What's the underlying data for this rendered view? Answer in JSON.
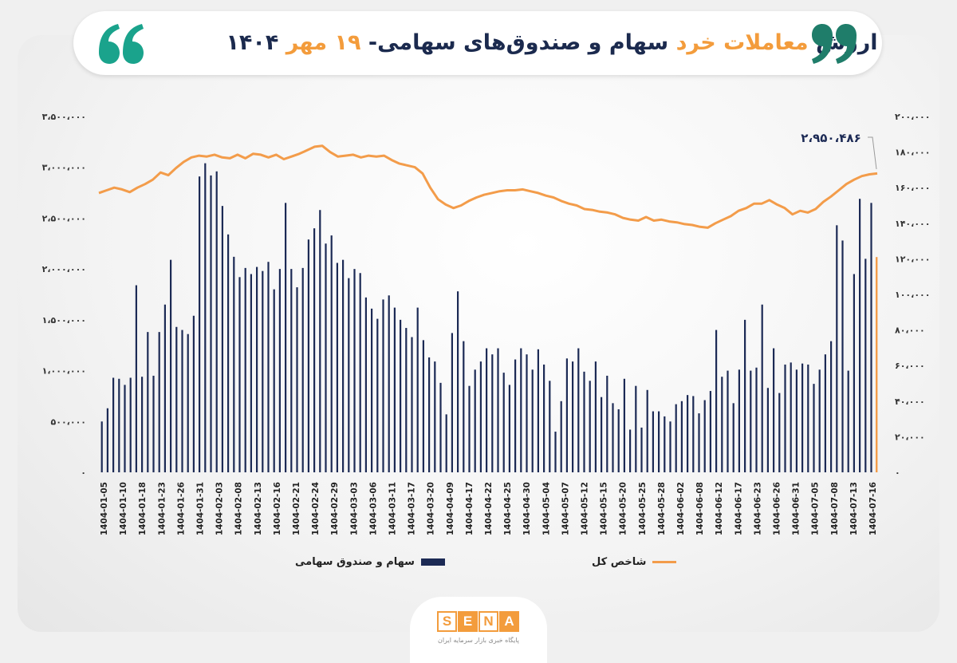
{
  "header": {
    "title_part1": "ارزش",
    "title_part2": "معاملات خرد",
    "title_part3": "سهام و صندوق‌های سهامی-",
    "title_part4": "۱۹ مهر",
    "title_part5": "۱۴۰۴"
  },
  "colors": {
    "navy": "#1c2a55",
    "orange": "#f39c4a",
    "quote_left": "#1aa38c",
    "quote_right": "#1f7d6a"
  },
  "icons": [
    "quote-open-icon",
    "quote-close-icon"
  ],
  "legend": {
    "bars_label": "سهام و صندوق سهامی",
    "line_label": "شاخص کل"
  },
  "logo": {
    "letters": [
      "S",
      "E",
      "N",
      "A"
    ],
    "subtitle": "پایگاه خبری بازار سرمایه ایران"
  },
  "chart_data": {
    "type": "bar+line",
    "categories": [
      "1404-01-05",
      "1404-01-10",
      "1404-01-18",
      "1404-01-23",
      "1404-01-26",
      "1404-01-31",
      "1404-02-03",
      "1404-02-08",
      "1404-02-13",
      "1404-02-16",
      "1404-02-21",
      "1404-02-24",
      "1404-02-29",
      "1404-03-03",
      "1404-03-06",
      "1404-03-11",
      "1404-03-17",
      "1404-03-20",
      "1404-04-09",
      "1404-04-17",
      "1404-04-22",
      "1404-04-25",
      "1404-04-30",
      "1404-05-04",
      "1404-05-07",
      "1404-05-12",
      "1404-05-15",
      "1404-05-20",
      "1404-05-25",
      "1404-05-28",
      "1404-06-02",
      "1404-06-08",
      "1404-06-12",
      "1404-06-17",
      "1404-06-23",
      "1404-06-26",
      "1404-06-31",
      "1404-07-05",
      "1404-07-08",
      "1404-07-13",
      "1404-07-16"
    ],
    "left_axis": {
      "ticks": [
        "۰",
        "۵۰۰،۰۰۰",
        "۱،۰۰۰،۰۰۰",
        "۱،۵۰۰،۰۰۰",
        "۲،۰۰۰،۰۰۰",
        "۲،۵۰۰،۰۰۰",
        "۳،۰۰۰،۰۰۰",
        "۳،۵۰۰،۰۰۰"
      ],
      "ylim": [
        0,
        3500000
      ]
    },
    "right_axis": {
      "ticks": [
        "۰",
        "۲۰،۰۰۰",
        "۴۰،۰۰۰",
        "۶۰،۰۰۰",
        "۸۰،۰۰۰",
        "۱۰۰،۰۰۰",
        "۱۲۰،۰۰۰",
        "۱۴۰،۰۰۰",
        "۱۶۰،۰۰۰",
        "۱۸۰،۰۰۰",
        "۲۰۰،۰۰۰"
      ],
      "ylim": [
        0,
        200000
      ]
    },
    "bars": {
      "name": "سهام و صندوق سهامی",
      "values": [
        500000,
        630000,
        930000,
        920000,
        860000,
        930000,
        1840000,
        940000,
        1380000,
        950000,
        1380000,
        1650000,
        2090000,
        1430000,
        1400000,
        1360000,
        1540000,
        2910000,
        3040000,
        2920000,
        2960000,
        2620000,
        2340000,
        2120000,
        1920000,
        2010000,
        1950000,
        2020000,
        1980000,
        2070000,
        1800000,
        2000000,
        2650000,
        2000000,
        1820000,
        2010000,
        2290000,
        2400000,
        2580000,
        2250000,
        2330000,
        2060000,
        2090000,
        1910000,
        2000000,
        1960000,
        1720000,
        1610000,
        1510000,
        1700000,
        1740000,
        1620000,
        1500000,
        1420000,
        1330000,
        1620000,
        1300000,
        1130000,
        1090000,
        880000,
        570000,
        1370000,
        1780000,
        1290000,
        850000,
        1010000,
        1090000,
        1220000,
        1160000,
        1220000,
        980000,
        860000,
        1110000,
        1220000,
        1160000,
        1010000,
        1210000,
        1060000,
        900000,
        400000,
        700000,
        1120000,
        1090000,
        1220000,
        990000,
        900000,
        1090000,
        740000,
        950000,
        680000,
        620000,
        920000,
        420000,
        850000,
        440000,
        810000,
        600000,
        600000,
        550000,
        500000,
        670000,
        700000,
        760000,
        750000,
        580000,
        710000,
        800000,
        1400000,
        940000,
        1000000,
        680000,
        1010000,
        1500000,
        1000000,
        1030000,
        1650000,
        830000,
        1220000,
        780000,
        1060000,
        1080000,
        1010000,
        1070000,
        1060000,
        870000,
        1010000,
        1160000,
        1290000,
        2430000,
        2280000,
        1000000,
        1950000,
        2690000,
        2100000,
        2650000
      ]
    },
    "line": {
      "name": "شاخص کل",
      "values": [
        157000,
        158500,
        160000,
        159000,
        157500,
        160000,
        162000,
        164500,
        168500,
        167000,
        171000,
        174500,
        177000,
        178000,
        177500,
        178500,
        177000,
        176500,
        178500,
        176500,
        179000,
        178500,
        177000,
        178500,
        176000,
        177500,
        179000,
        181000,
        183000,
        183500,
        180000,
        177500,
        178000,
        178500,
        177000,
        178000,
        177500,
        178000,
        175500,
        173500,
        172500,
        171500,
        168000,
        160000,
        153500,
        150500,
        148500,
        150000,
        152500,
        154500,
        156000,
        157000,
        158000,
        158500,
        158500,
        159000,
        158000,
        157000,
        155500,
        154500,
        152500,
        151000,
        150000,
        148000,
        147500,
        146500,
        146000,
        145000,
        143000,
        142000,
        141500,
        143500,
        141500,
        142000,
        141000,
        140500,
        139500,
        139000,
        138000,
        137500,
        140000,
        142000,
        144000,
        147000,
        148500,
        151000,
        151000,
        153000,
        150500,
        148500,
        145000,
        147000,
        146000,
        148000,
        152000,
        155000,
        158500,
        162000,
        164500,
        166500,
        167500,
        168000
      ]
    },
    "annotation": "۲،۹۵۰،۴۸۶",
    "title": "",
    "xlabel": "",
    "ylabel": ""
  }
}
